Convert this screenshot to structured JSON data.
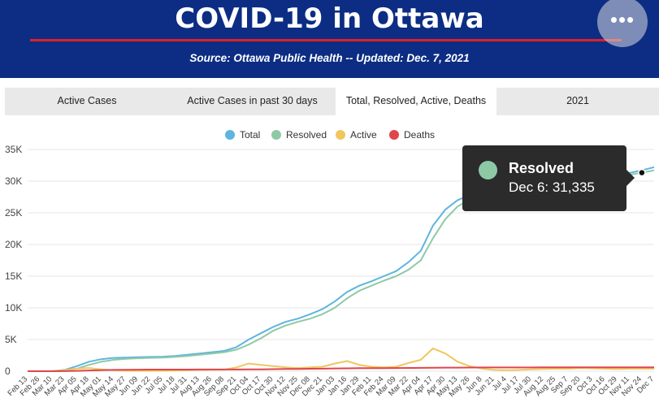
{
  "header": {
    "title": "COVID-19 in Ottawa",
    "source": "Source:  Ottawa Public Health -- Updated:  Dec. 7, 2021",
    "more_icon": "more-dots-icon",
    "more_label": "•••",
    "background_color": "#0c2d83",
    "accent_color": "#e02027"
  },
  "tabs": [
    {
      "label": "Active Cases",
      "active": false
    },
    {
      "label": "Active Cases in past 30 days",
      "active": false
    },
    {
      "label": "Total, Resolved, Active, Deaths",
      "active": true
    },
    {
      "label": "2021",
      "active": false
    }
  ],
  "tooltip": {
    "series": "Resolved",
    "value": "Dec 6: 31,335",
    "color": "#8ec9a6"
  },
  "chart_data": {
    "type": "line",
    "title": "",
    "xlabel": "",
    "ylabel": "",
    "ylim": [
      0,
      35000
    ],
    "yticks": [
      "0",
      "5K",
      "10K",
      "15K",
      "20K",
      "25K",
      "30K",
      "35K"
    ],
    "grid": "horizontal",
    "legend_position": "top-center",
    "x": [
      "Feb 13",
      "Feb 26",
      "Mar 10",
      "Mar 23",
      "Apr 05",
      "Apr 18",
      "May 01",
      "May 14",
      "May 27",
      "Jun 09",
      "Jun 22",
      "Jul 05",
      "Jul 18",
      "Jul 31",
      "Aug 13",
      "Aug 26",
      "Sep 08",
      "Sep 21",
      "Oct 04",
      "Oct 17",
      "Oct 30",
      "Nov 12",
      "Nov 25",
      "Dec 08",
      "Dec 21",
      "Jan 03",
      "Jan 16",
      "Jan 29",
      "Feb 11",
      "Feb 24",
      "Mar 09",
      "Mar 22",
      "Apr 04",
      "Apr 17",
      "Apr 30",
      "May 13",
      "May 26",
      "Jun 8",
      "Jun 21",
      "Jul 4",
      "Jul 17",
      "Jul 30",
      "Aug 12",
      "Aug 25",
      "Sep 7",
      "Sep 20",
      "Oct 3",
      "Oct 16",
      "Oct 29",
      "Nov 11",
      "Nov 24",
      "Dec 7"
    ],
    "series": [
      {
        "name": "Total",
        "color": "#5eb5e0",
        "values": [
          0,
          0,
          0,
          200,
          800,
          1500,
          1900,
          2100,
          2150,
          2200,
          2250,
          2300,
          2400,
          2600,
          2800,
          3000,
          3200,
          3800,
          5000,
          6000,
          7000,
          7800,
          8300,
          9000,
          9800,
          11000,
          12500,
          13500,
          14200,
          15000,
          15800,
          17200,
          19000,
          23000,
          25500,
          27000,
          27800,
          28200,
          28500,
          28700,
          28900,
          29100,
          29300,
          29500,
          29700,
          30000,
          30300,
          30600,
          30900,
          31300,
          31700,
          32200
        ]
      },
      {
        "name": "Resolved",
        "color": "#8ec9a6",
        "values": [
          0,
          0,
          0,
          100,
          400,
          1000,
          1500,
          1800,
          1950,
          2050,
          2100,
          2150,
          2250,
          2400,
          2600,
          2800,
          3000,
          3400,
          4200,
          5200,
          6400,
          7200,
          7800,
          8300,
          9000,
          10000,
          11500,
          12700,
          13500,
          14300,
          15000,
          16000,
          17500,
          21000,
          24000,
          26000,
          27100,
          27700,
          28100,
          28400,
          28650,
          28900,
          29100,
          29300,
          29500,
          29700,
          30000,
          30300,
          30600,
          31000,
          31335,
          31700
        ]
      },
      {
        "name": "Active",
        "color": "#f0c75e",
        "values": [
          0,
          0,
          0,
          150,
          400,
          500,
          300,
          150,
          80,
          60,
          50,
          60,
          100,
          150,
          200,
          220,
          250,
          600,
          1200,
          1000,
          800,
          600,
          500,
          600,
          700,
          1200,
          1600,
          1000,
          700,
          600,
          700,
          1300,
          1800,
          3600,
          2800,
          1500,
          800,
          400,
          200,
          150,
          200,
          300,
          350,
          400,
          400,
          500,
          450,
          400,
          350,
          400,
          400,
          400
        ]
      },
      {
        "name": "Deaths",
        "color": "#e0454b",
        "values": [
          0,
          0,
          0,
          10,
          50,
          120,
          170,
          200,
          230,
          250,
          255,
          258,
          260,
          262,
          264,
          266,
          268,
          270,
          280,
          300,
          320,
          340,
          360,
          380,
          400,
          430,
          450,
          470,
          480,
          490,
          500,
          510,
          520,
          540,
          560,
          570,
          580,
          585,
          590,
          592,
          594,
          596,
          598,
          600,
          602,
          604,
          606,
          608,
          610,
          612,
          614,
          616
        ]
      }
    ]
  }
}
